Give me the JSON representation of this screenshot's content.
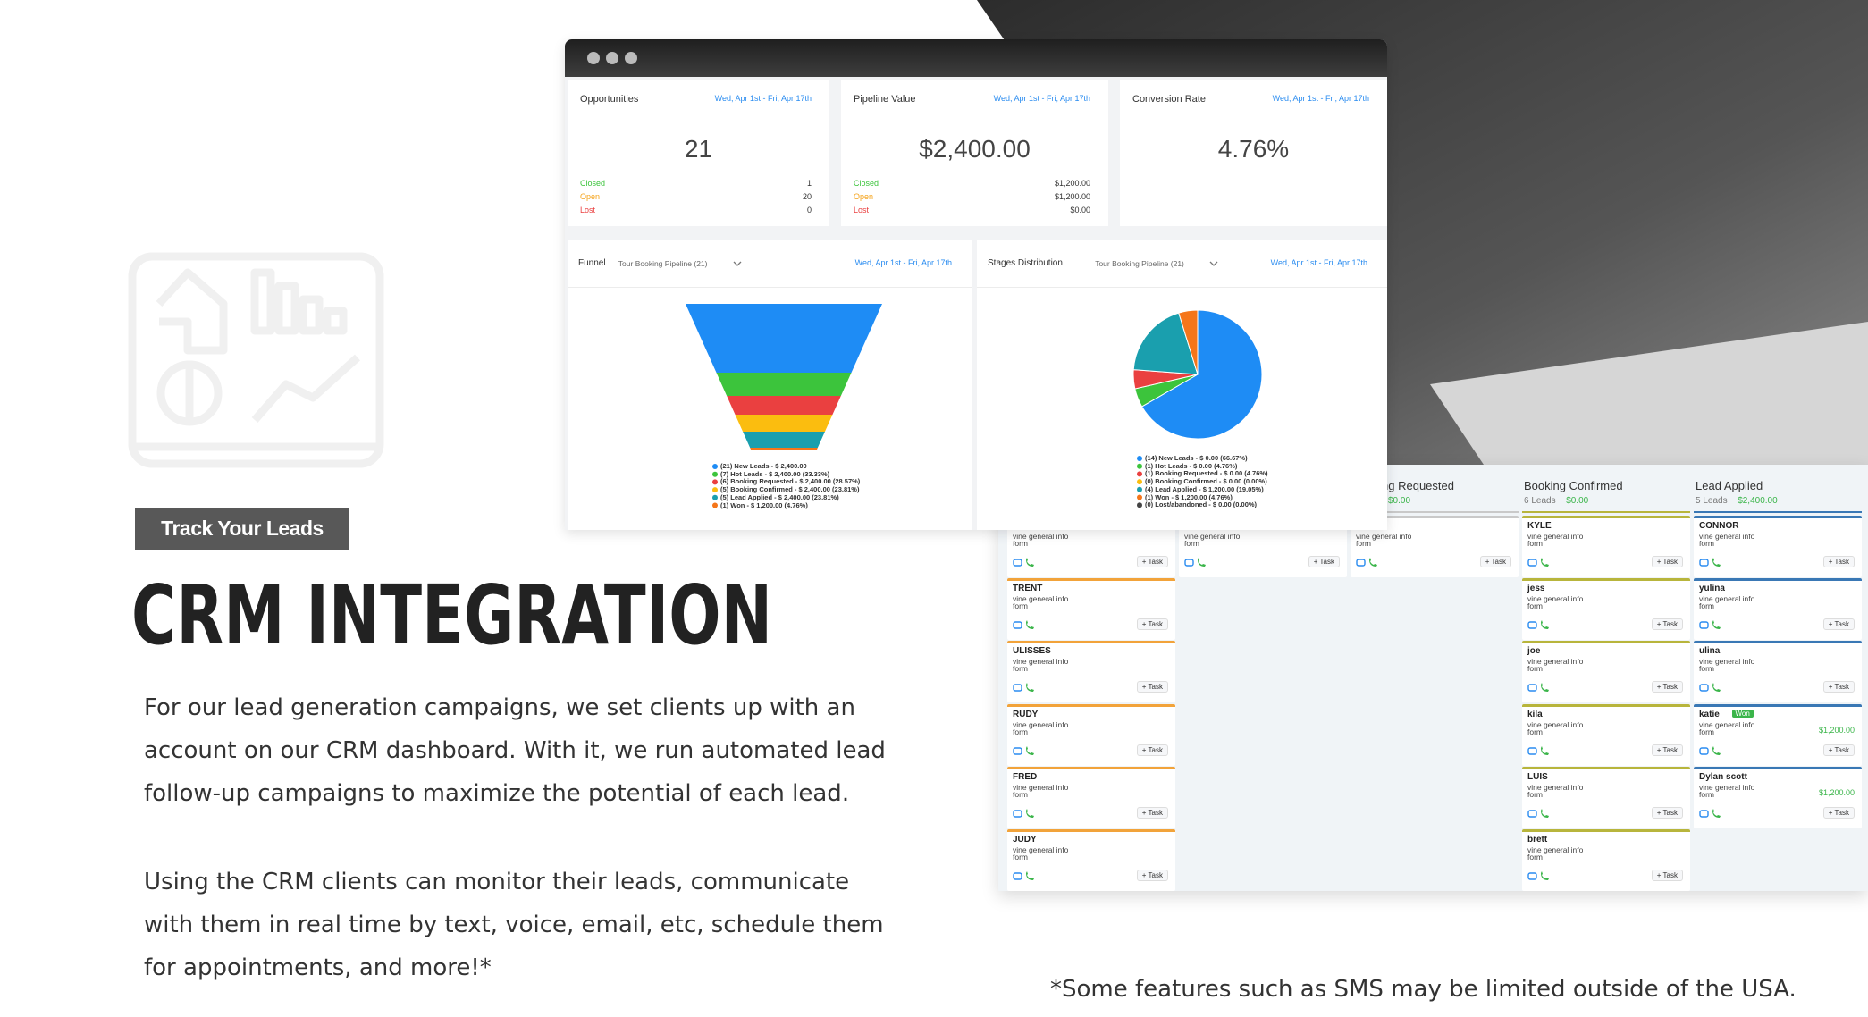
{
  "badge": "Track Your Leads",
  "heading": "CRM INTEGRATION",
  "paragraphs": [
    [
      "For our lead generation campaigns, we set clients up with an",
      "account on our CRM dashboard. With it, we run automated lead",
      "follow-up campaigns to maximize the potential of each lead."
    ],
    [
      "Using the CRM clients can monitor their leads, communicate",
      "with them in real time by text, voice, email, etc, schedule them",
      "for appointments, and more!*"
    ]
  ],
  "footnote": "*Some features such as SMS may be limited outside of the USA.",
  "dashboard": {
    "cards": [
      {
        "title": "Opportunities",
        "date": "Wed, Apr 1st - Fri, Apr 17th",
        "value": 21,
        "rows": [
          [
            "Closed",
            1
          ],
          [
            "Open",
            20
          ],
          [
            "Lost",
            0
          ]
        ]
      },
      {
        "title": "Pipeline Value",
        "date": "Wed, Apr 1st - Fri, Apr 17th",
        "value": "$2,400.00",
        "rows": [
          [
            "Closed",
            "$1,200.00"
          ],
          [
            "Open",
            "$1,200.00"
          ],
          [
            "Lost",
            "$0.00"
          ]
        ]
      },
      {
        "title": "Conversion Rate",
        "date": "Wed, Apr 1st - Fri, Apr 17th",
        "value": "4.76%",
        "rows": []
      }
    ],
    "funnel": {
      "title": "Funnel",
      "pipeline": "Tour Booking Pipeline (21)",
      "date": "Wed, Apr 1st - Fri, Apr 17th",
      "colors": [
        "#1e8cf5",
        "#3cc43c",
        "#ea4040",
        "#fbbd0f",
        "#1a9fae",
        "#f5761a"
      ],
      "legend": [
        "(21) New Leads - $ 2,400.00",
        "(7) Hot Leads - $ 2,400.00 (33.33%)",
        "(6) Booking Requested - $ 2,400.00 (28.57%)",
        "(5) Booking Confirmed - $ 2,400.00 (23.81%)",
        "(5) Lead Applied - $ 2,400.00 (23.81%)",
        "(1) Won - $ 1,200.00 (4.76%)"
      ]
    },
    "stages": {
      "title": "Stages Distribution",
      "pipeline": "Tour Booking Pipeline (21)",
      "date": "Wed, Apr 1st - Fri, Apr 17th",
      "values": [
        66.67,
        4.76,
        4.76,
        0,
        19.05,
        4.76,
        0
      ],
      "colors": [
        "#1e8cf5",
        "#3cc43c",
        "#ea4040",
        "#fbbd0f",
        "#1a9fae",
        "#f5761a",
        "#444444"
      ],
      "legend": [
        "(14) New Leads - $ 0.00 (66.67%)",
        "(1) Hot Leads - $ 0.00 (4.76%)",
        "(1) Booking Requested - $ 0.00 (4.76%)",
        "(0) Booking Confirmed - $ 0.00 (0.00%)",
        "(4) Lead Applied - $ 1,200.00 (19.05%)",
        "(1) Won - $ 1,200.00 (4.76%)",
        "(0) Lost/abandoned - $ 0.00 (0.00%)"
      ]
    }
  },
  "kanban": {
    "task": "+ Task",
    "columns": [
      {
        "color": "#f2a33a",
        "cards": [
          {
            "source": "vine general info form"
          },
          {
            "name": "TRENT",
            "source": "vine general info form"
          },
          {
            "name": "ULISSES",
            "source": "vine general info form"
          },
          {
            "name": "RUDY",
            "source": "vine general info form"
          },
          {
            "name": "FRED",
            "source": "vine general info form"
          },
          {
            "name": "JUDY",
            "source": "vine general info form"
          }
        ]
      },
      {
        "color": "#c9c9c9",
        "cards": [
          {
            "source": "vine general info form"
          }
        ]
      },
      {
        "color": "#c9c9c9",
        "title": "Booking Requested",
        "amount": "$0.00",
        "cards": [
          {
            "source": "vine general info form"
          }
        ]
      },
      {
        "color": "#b8b53c",
        "title": "Booking Confirmed",
        "count": "6 Leads",
        "amount": "$0.00",
        "cards": [
          {
            "name": "KYLE",
            "source": "vine general info form"
          },
          {
            "name": "jess",
            "source": "vine general info form"
          },
          {
            "name": "joe",
            "source": "vine general info form"
          },
          {
            "name": "kila",
            "source": "vine general info form"
          },
          {
            "name": "LUIS",
            "source": "vine general info form"
          },
          {
            "name": "brett",
            "source": "vine general info form"
          }
        ]
      },
      {
        "color": "#3a78b5",
        "title": "Lead Applied",
        "count": "5 Leads",
        "amount": "$2,400.00",
        "cards": [
          {
            "name": "CONNOR",
            "source": "vine general info form"
          },
          {
            "name": "yulina",
            "source": "vine general info form"
          },
          {
            "name": "ulina",
            "source": "vine general info form"
          },
          {
            "name": "katie",
            "tag": "Won",
            "source": "vine general info form",
            "amount": "$1,200.00"
          },
          {
            "name": "Dylan scott",
            "source": "vine general info form",
            "amount": "$1,200.00"
          }
        ]
      }
    ]
  }
}
